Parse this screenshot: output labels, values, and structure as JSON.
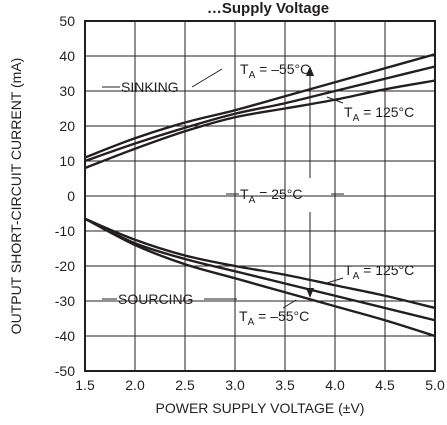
{
  "chart_data": {
    "type": "line",
    "title": "…Supply Voltage",
    "xlabel": "POWER SUPPLY VOLTAGE (±V)",
    "ylabel": "OUTPUT SHORT-CIRCUIT CURRENT (mA)",
    "xlim": [
      1.5,
      5.0
    ],
    "ylim": [
      -50,
      50
    ],
    "x_ticks": [
      "1.5",
      "2.0",
      "2.5",
      "3.0",
      "3.5",
      "4.0",
      "4.5",
      "5.0"
    ],
    "y_ticks": [
      "50",
      "40",
      "30",
      "20",
      "10",
      "0",
      "-10",
      "-20",
      "-30",
      "-40",
      "-50"
    ],
    "grid": true,
    "annotations": {
      "sinking": "SINKING",
      "sourcing": "SOURCING",
      "ta_prefix": "T",
      "ta_sub": "A",
      "ta_m55": " = –55°C",
      "ta_125": " = 125°C",
      "ta_25": " = 25°C"
    },
    "series": [
      {
        "temp": "-55°C",
        "x": [
          1.5,
          2.0,
          2.5,
          3.0,
          3.5,
          4.0,
          4.5,
          5.0
        ],
        "values": [
          11,
          16.5,
          21,
          24.5,
          28.5,
          32.5,
          36.5,
          40.5
        ]
      },
      {
        "temp": "25°C",
        "x": [
          1.5,
          2.0,
          2.5,
          3.0,
          3.5,
          4.0,
          4.5,
          5.0
        ],
        "values": [
          10,
          15,
          19.5,
          23.5,
          26.5,
          30,
          33.5,
          37
        ]
      },
      {
        "temp": "125°C",
        "x": [
          1.5,
          2.0,
          2.5,
          3.0,
          3.5,
          4.0,
          4.5,
          5.0
        ],
        "values": [
          8,
          13.5,
          18.5,
          22.5,
          25,
          27.5,
          30.5,
          33
        ]
      },
      {
        "temp": "125°C",
        "x": [
          1.5,
          2.0,
          2.5,
          3.0,
          3.5,
          4.0,
          4.5,
          5.0
        ],
        "values": [
          -6.5,
          -12.5,
          -17,
          -20,
          -22.5,
          -25.5,
          -28.5,
          -32
        ]
      },
      {
        "temp": "25°C",
        "x": [
          1.5,
          2.0,
          2.5,
          3.0,
          3.5,
          4.0,
          4.5,
          5.0
        ],
        "values": [
          -6.5,
          -13.5,
          -18,
          -21.5,
          -25,
          -28.5,
          -32,
          -35.5
        ]
      },
      {
        "temp": "-55°C",
        "x": [
          1.5,
          2.0,
          2.5,
          3.0,
          3.5,
          4.0,
          4.5,
          5.0
        ],
        "values": [
          -6.5,
          -14,
          -19.5,
          -23.5,
          -27.5,
          -31.5,
          -35.5,
          -40
        ]
      }
    ]
  }
}
